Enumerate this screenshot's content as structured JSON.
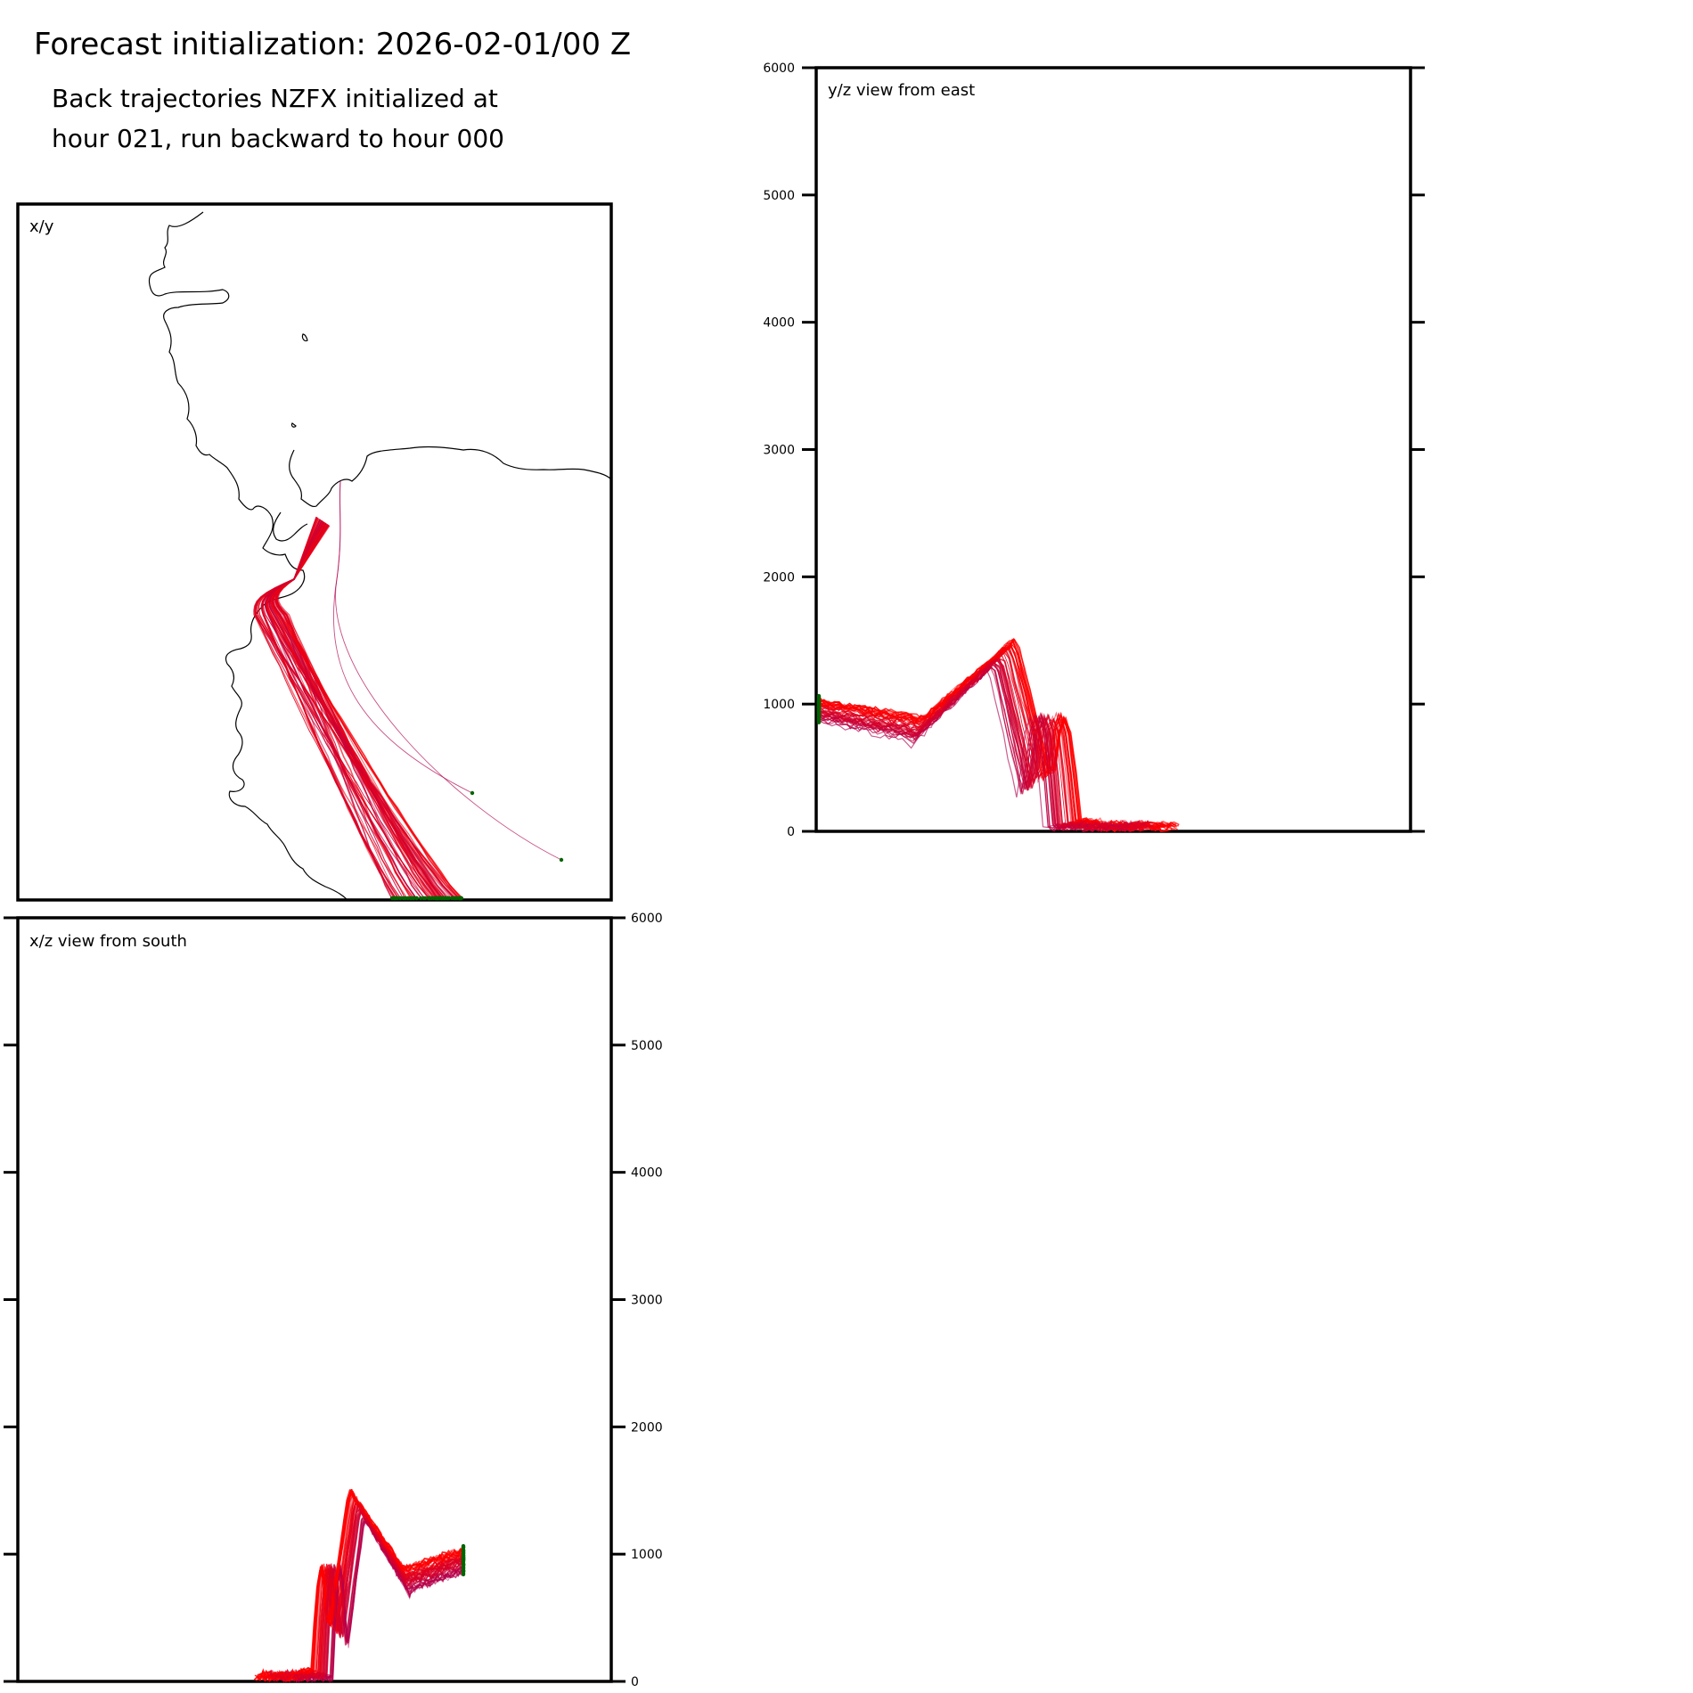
{
  "figure": {
    "title": "Forecast initialization: 2026-02-01/00 Z",
    "subtitle_lines": [
      "Back trajectories NZFX initialized at",
      "hour 021, run backward to hour 000"
    ]
  },
  "colors": {
    "trajectory_early": "#ff0000",
    "trajectory_late": "#b0004f",
    "endpoint": "#006400",
    "coastline": "#000000",
    "axes": "#000000"
  },
  "chart_data": [
    {
      "type": "line",
      "panel": "x/y",
      "label": "x/y",
      "description_of_content": "plan view map with coastline and trajectory paths",
      "grid": false,
      "series": []
    },
    {
      "type": "line",
      "panel": "y/z",
      "label": "y/z view from east",
      "ylim": [
        0,
        6000
      ],
      "yticks": [
        0,
        1000,
        2000,
        3000,
        4000,
        5000,
        6000
      ],
      "ytick_labels": [
        "0",
        "1000",
        "2000",
        "3000",
        "4000",
        "5000",
        "6000"
      ],
      "ytick_side": "left",
      "grid": false,
      "approx_height_profile_m": {
        "start_band": [
          900,
          1000
        ],
        "mid_band": [
          700,
          900
        ],
        "peak_band": [
          1200,
          1600
        ],
        "final_band": [
          0,
          300
        ]
      }
    },
    {
      "type": "line",
      "panel": "x/z",
      "label": "x/z view from south",
      "ylim": [
        0,
        6000
      ],
      "yticks": [
        0,
        1000,
        2000,
        3000,
        4000,
        5000,
        6000
      ],
      "ytick_labels": [
        "0",
        "1000",
        "2000",
        "3000",
        "4000",
        "5000",
        "6000"
      ],
      "ytick_side": "right",
      "grid": false,
      "approx_height_profile_m": {
        "start_band": [
          900,
          1000
        ],
        "mid_band": [
          700,
          900
        ],
        "peak_band": [
          1200,
          1600
        ],
        "final_band": [
          0,
          300
        ]
      }
    }
  ]
}
